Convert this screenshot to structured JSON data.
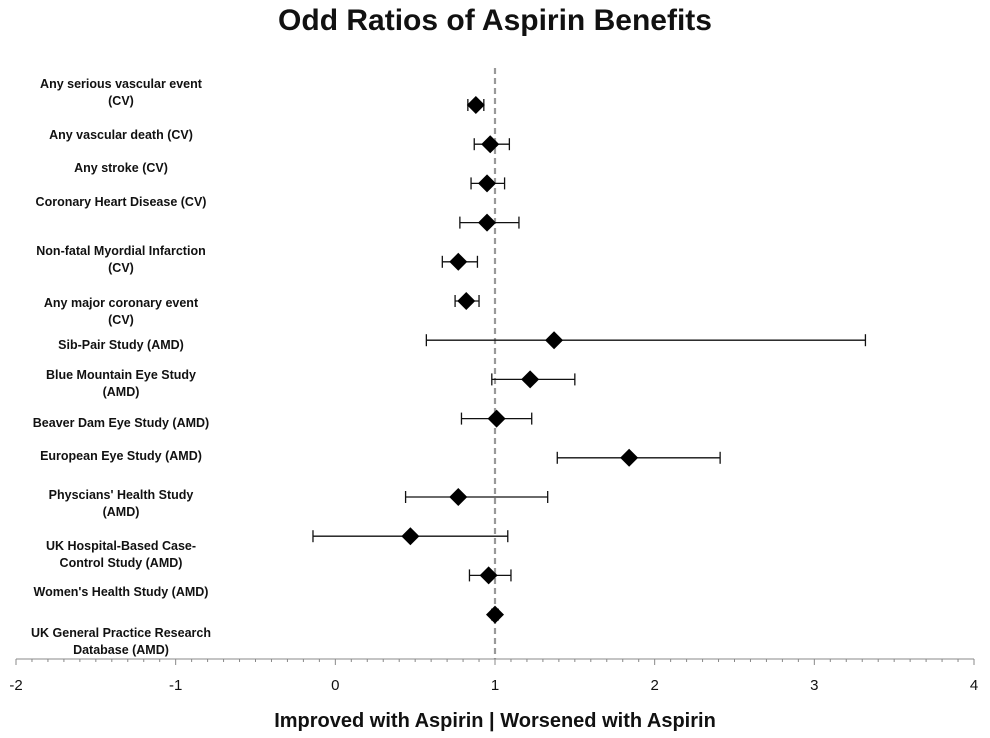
{
  "chart_data": {
    "type": "scatter",
    "title": "Odd Ratios of Aspirin Benefits",
    "xlabel": "Improved with Aspirin | Worsened with Aspirin",
    "ylabel": "",
    "xlim": [
      -2,
      4
    ],
    "xticks": [
      "-2",
      "-1",
      "0",
      "1",
      "2",
      "3",
      "4"
    ],
    "reference_line": 1,
    "grid": false,
    "categories": [
      "Any serious vascular event\n(CV)",
      "Any vascular death (CV)",
      "Any stroke (CV)",
      "Coronary Heart Disease (CV)",
      "Non-fatal Myordial Infarction\n(CV)",
      "Any major coronary event\n(CV)",
      "Sib-Pair Study (AMD)",
      "Blue Mountain Eye Study\n(AMD)",
      "Beaver Dam Eye Study (AMD)",
      "European Eye Study (AMD)",
      "Physcians' Health Study\n(AMD)",
      "UK Hospital-Based Case-\nControl Study (AMD)",
      "Women's Health Study (AMD)",
      "UK General Practice Research\nDatabase (AMD)"
    ],
    "points": [
      {
        "or": 0.88,
        "low": 0.83,
        "high": 0.93
      },
      {
        "or": 0.97,
        "low": 0.87,
        "high": 1.09
      },
      {
        "or": 0.95,
        "low": 0.85,
        "high": 1.06
      },
      {
        "or": 0.95,
        "low": 0.78,
        "high": 1.15
      },
      {
        "or": 0.77,
        "low": 0.67,
        "high": 0.89
      },
      {
        "or": 0.82,
        "low": 0.75,
        "high": 0.9
      },
      {
        "or": 1.37,
        "low": 0.57,
        "high": 3.32
      },
      {
        "or": 1.22,
        "low": 0.98,
        "high": 1.5
      },
      {
        "or": 1.01,
        "low": 0.79,
        "high": 1.23
      },
      {
        "or": 1.84,
        "low": 1.39,
        "high": 2.41
      },
      {
        "or": 0.77,
        "low": 0.44,
        "high": 1.33
      },
      {
        "or": 0.47,
        "low": -0.14,
        "high": 1.08
      },
      {
        "or": 0.96,
        "low": 0.84,
        "high": 1.1
      },
      {
        "or": 1.0,
        "low": 0.98,
        "high": 1.02
      }
    ]
  }
}
